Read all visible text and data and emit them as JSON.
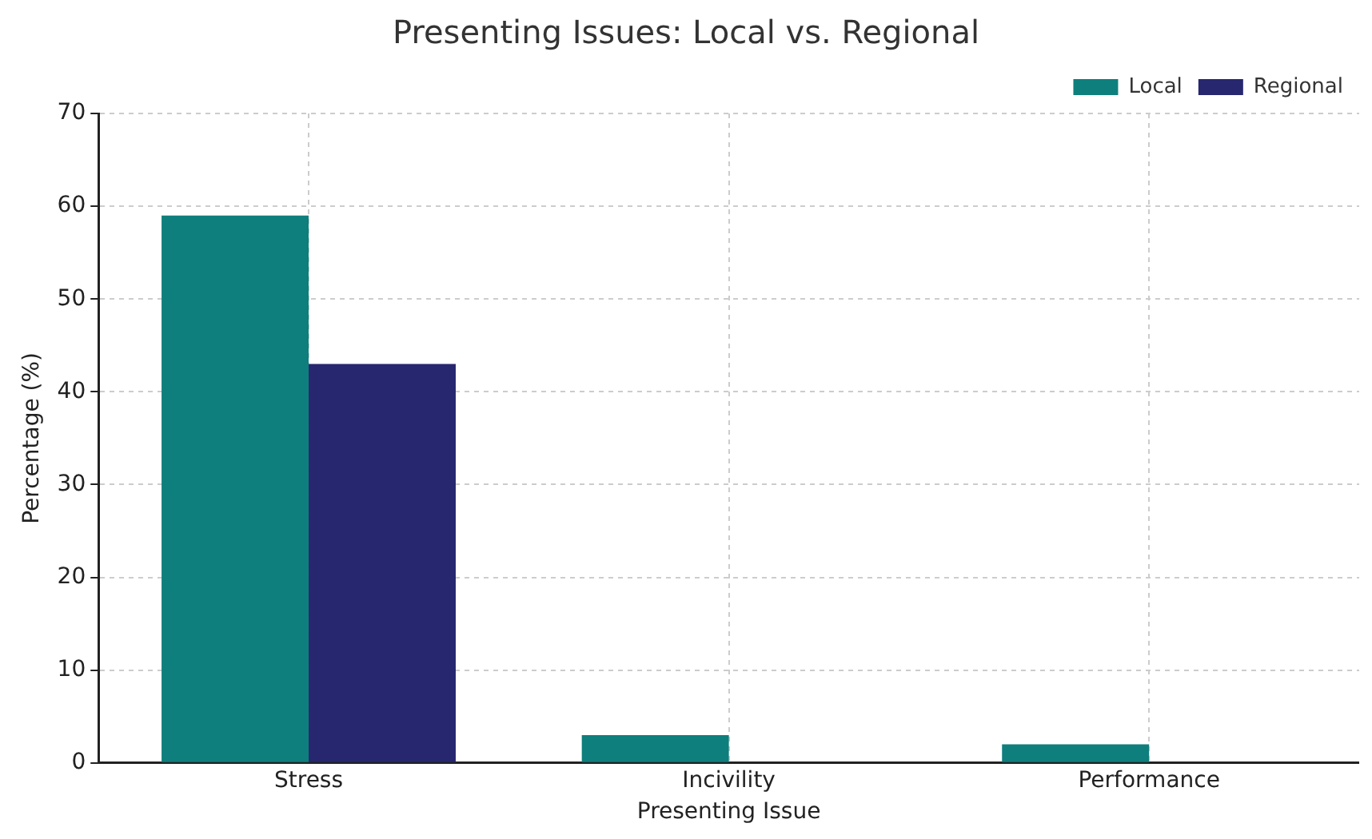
{
  "chart_data": {
    "type": "bar",
    "title": "Presenting Issues: Local vs. Regional",
    "xlabel": "Presenting Issue",
    "ylabel": "Percentage (%)",
    "categories": [
      "Stress",
      "Incivility",
      "Performance"
    ],
    "series": [
      {
        "name": "Local",
        "color": "#0e7f7c",
        "values": [
          59,
          3,
          2
        ]
      },
      {
        "name": "Regional",
        "color": "#26276e",
        "values": [
          43,
          0,
          0
        ]
      }
    ],
    "ylim": [
      0,
      70
    ],
    "yticks": [
      0,
      10,
      20,
      30,
      40,
      50,
      60,
      70
    ],
    "grid": true,
    "legend": "top right"
  }
}
